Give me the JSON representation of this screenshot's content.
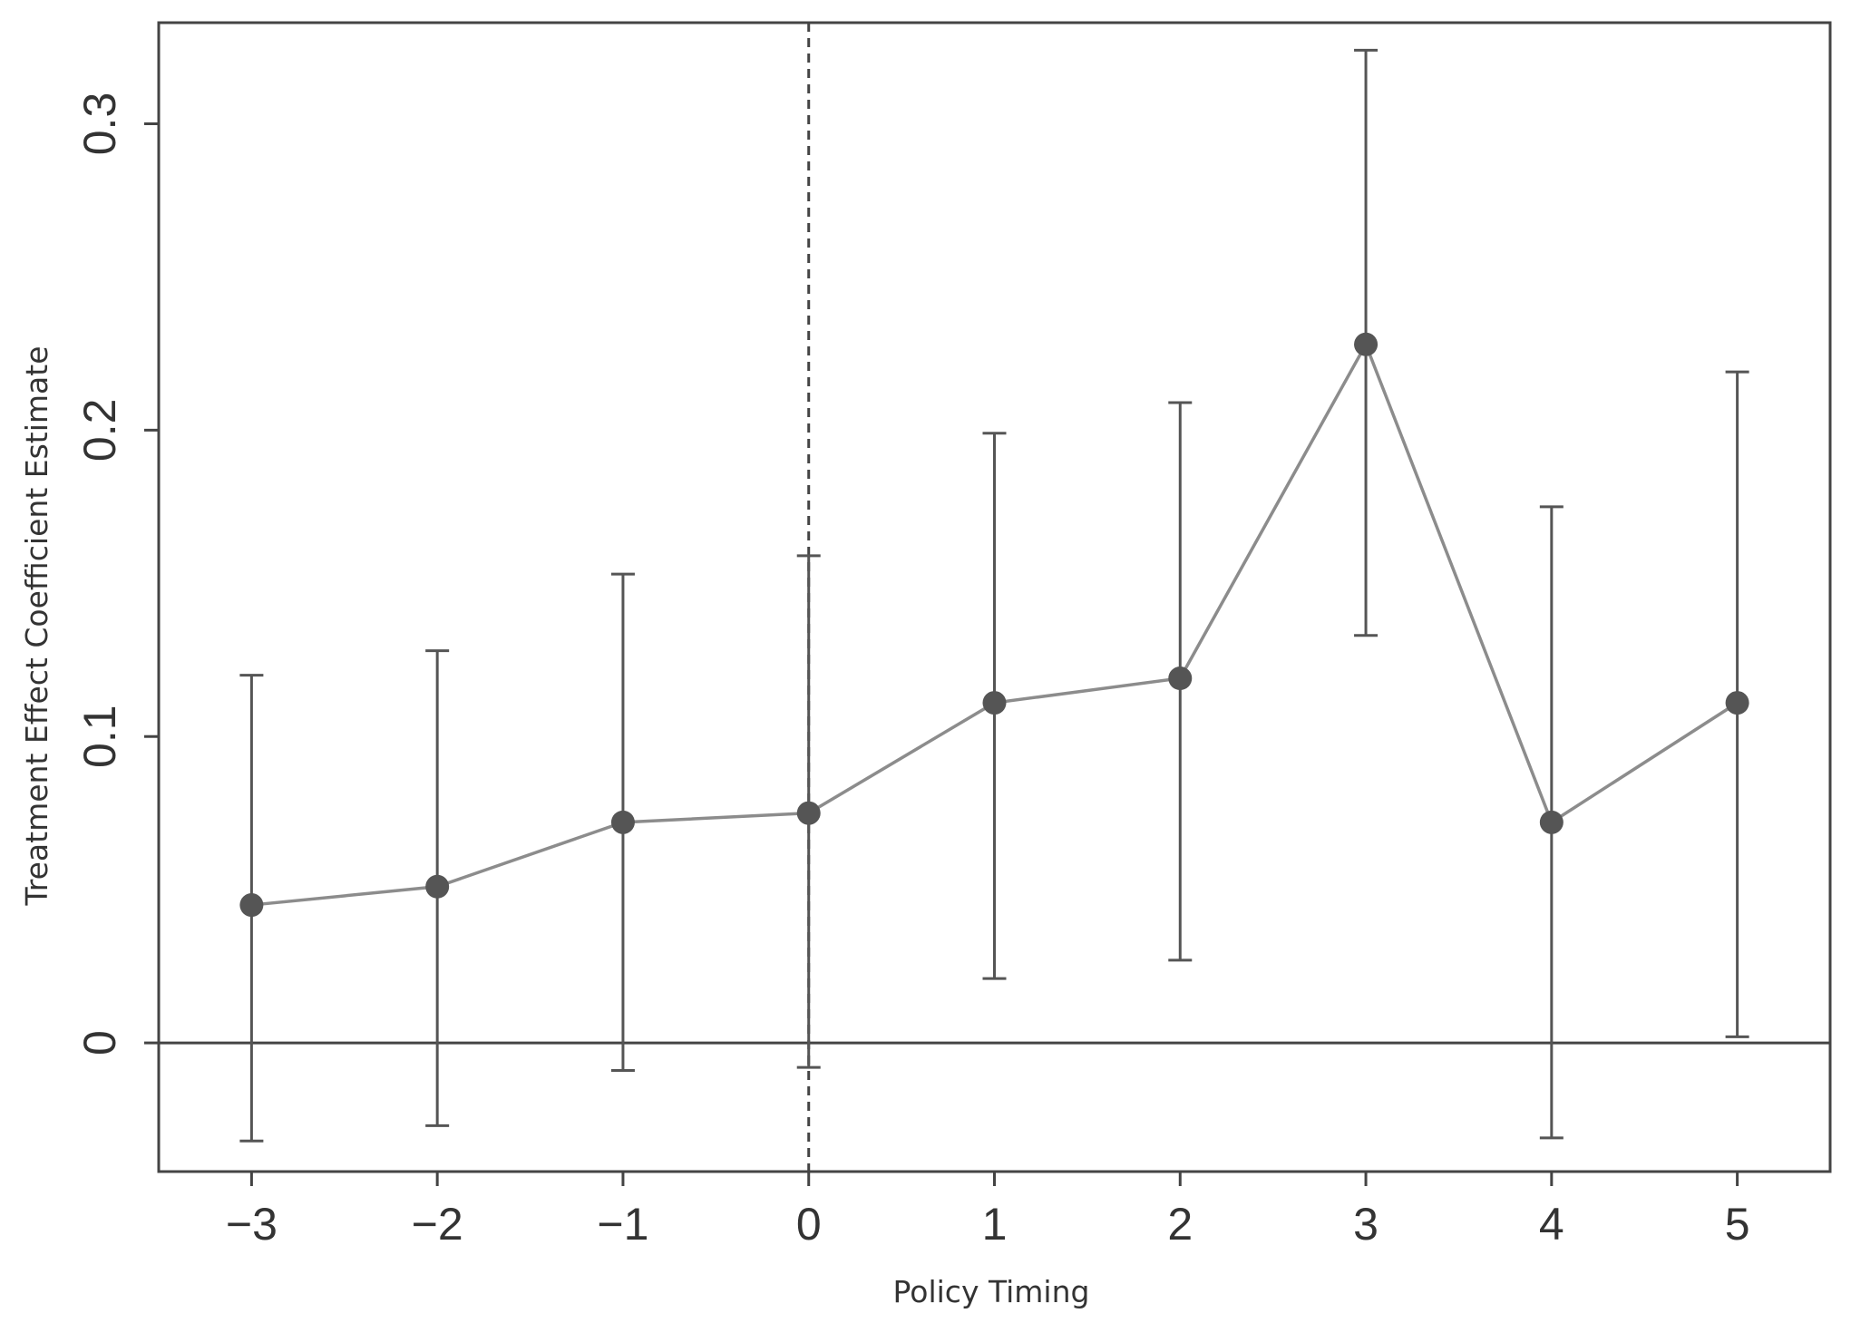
{
  "chart_data": {
    "type": "scatter",
    "title": "",
    "xlabel": "Policy Timing",
    "ylabel": "Treatment Effect Coefficient Estimate",
    "xlim": [
      -3.5,
      5.5
    ],
    "ylim": [
      -0.042,
      0.333
    ],
    "x_ticks": [
      -3,
      -2,
      -1,
      0,
      1,
      2,
      3,
      4,
      5
    ],
    "x_tick_labels": [
      "−3",
      "−2",
      "−1",
      "0",
      "1",
      "2",
      "3",
      "4",
      "5"
    ],
    "y_ticks": [
      0,
      0.1,
      0.2,
      0.3
    ],
    "y_tick_labels": [
      "0",
      "0.1",
      "0.2",
      "0.3"
    ],
    "grid": false,
    "reference_lines": {
      "horizontal_y": 0,
      "vertical_dashed_x": 0
    },
    "series": [
      {
        "x": [
          -3,
          -2,
          -1,
          0,
          1,
          2,
          3,
          4,
          5
        ],
        "y": [
          0.045,
          0.051,
          0.072,
          0.075,
          0.111,
          0.119,
          0.228,
          0.072,
          0.111
        ],
        "lower": [
          -0.032,
          -0.027,
          -0.009,
          -0.008,
          0.021,
          0.027,
          0.133,
          -0.031,
          0.002
        ],
        "upper": [
          0.12,
          0.128,
          0.153,
          0.159,
          0.199,
          0.209,
          0.324,
          0.175,
          0.219
        ]
      }
    ],
    "colors": {
      "line": "#8c8c8c",
      "point": "#555555",
      "errorbar": "#555555",
      "axis": "#444444"
    }
  }
}
